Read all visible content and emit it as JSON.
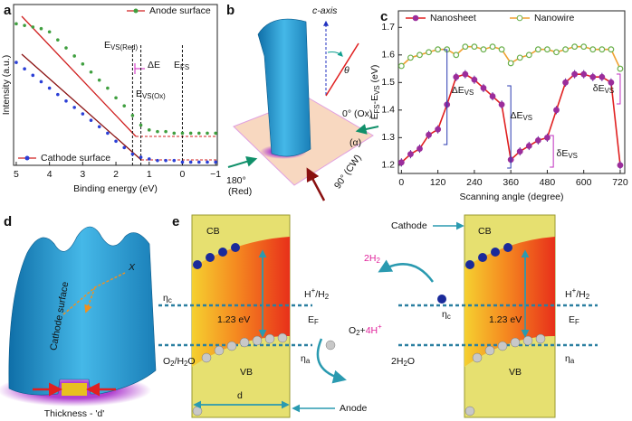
{
  "chart_data": [
    {
      "type": "scatter",
      "label": "a",
      "x_label": "Binding energy (eV)",
      "y_label": "Intensity (a.u.)",
      "xlim": [
        5.08,
        -1.05
      ],
      "ylim": [
        0,
        1
      ],
      "xticks": [
        5,
        4,
        3,
        2,
        1,
        0,
        {
          "value": -1,
          "label": "−1"
        }
      ],
      "x": [
        5,
        4.75,
        4.5,
        4.25,
        4,
        3.75,
        3.5,
        3.25,
        3,
        2.75,
        2.5,
        2.25,
        2,
        1.75,
        1.5,
        1.25,
        1,
        0.75,
        0.5,
        0.25,
        0,
        -0.25,
        -0.5,
        -0.75,
        -1
      ],
      "series": [
        {
          "name": "Anode surface",
          "color": "#3f9f3f",
          "legend": "upper right",
          "values": [
            0.88,
            0.87,
            0.86,
            0.85,
            0.83,
            0.78,
            0.73,
            0.68,
            0.63,
            0.58,
            0.53,
            0.48,
            0.42,
            0.37,
            0.31,
            0.25,
            0.22,
            0.21,
            0.21,
            0.2,
            0.2,
            0.2,
            0.2,
            0.2,
            0.2
          ]
        },
        {
          "name": "Cathode surface",
          "color": "#2b3fd6",
          "legend": "lower left",
          "values": [
            0.64,
            0.6,
            0.56,
            0.52,
            0.48,
            0.44,
            0.4,
            0.36,
            0.32,
            0.28,
            0.24,
            0.2,
            0.15,
            0.11,
            0.07,
            0.05,
            0.04,
            0.03,
            0.03,
            0.03,
            0.02,
            0.02,
            0.02,
            0.02,
            0.02
          ]
        }
      ],
      "vlines": [
        1.5,
        1.25,
        0
      ],
      "annotations": {
        "evs_red": {
          "parts": [
            {
              "text": "E"
            },
            {
              "sub": "VS(Red)"
            }
          ]
        },
        "delta_e": "ΔE",
        "evs_ox": {
          "parts": [
            {
              "text": "E"
            },
            {
              "sub": "VS(Ox)"
            }
          ]
        },
        "efs": {
          "parts": [
            {
              "text": "E"
            },
            {
              "sub": "FS"
            }
          ]
        }
      }
    },
    {
      "type": "line",
      "label": "c",
      "x_label": "Scanning angle (degree)",
      "y_label": {
        "parts": [
          {
            "text": "E"
          },
          {
            "sub": "FS"
          },
          {
            "text": "-E"
          },
          {
            "sub": "VS"
          },
          {
            "text": " (eV)"
          }
        ]
      },
      "xlim": [
        -10,
        735
      ],
      "ylim": [
        1.17,
        1.76
      ],
      "xticks": [
        0,
        120,
        240,
        360,
        480,
        600,
        720
      ],
      "yticks": [
        1.2,
        1.3,
        1.4,
        1.5,
        1.6,
        1.7
      ],
      "x": [
        0,
        30,
        60,
        90,
        120,
        150,
        180,
        210,
        240,
        270,
        300,
        330,
        360,
        390,
        420,
        450,
        480,
        510,
        540,
        570,
        600,
        630,
        660,
        690,
        720
      ],
      "series": [
        {
          "name": "Nanosheet",
          "color": "#e02020",
          "marker_color": "#9b2d9b",
          "values": [
            1.21,
            1.24,
            1.26,
            1.31,
            1.33,
            1.42,
            1.52,
            1.53,
            1.51,
            1.48,
            1.45,
            1.42,
            1.22,
            1.25,
            1.27,
            1.29,
            1.3,
            1.4,
            1.5,
            1.53,
            1.53,
            1.52,
            1.52,
            1.5,
            1.2
          ],
          "errors": [
            0.015,
            0.015,
            0.015,
            0.015,
            0.015,
            0.015,
            0.015,
            0.015,
            0.015,
            0.015,
            0.015,
            0.015,
            0.015,
            0.015,
            0.015,
            0.015,
            0.015,
            0.015,
            0.015,
            0.015,
            0.015,
            0.015,
            0.015,
            0.015,
            0.015
          ]
        },
        {
          "name": "Nanowire",
          "color": "#f0a030",
          "marker_color": "#6ab04c",
          "values": [
            1.56,
            1.59,
            1.6,
            1.61,
            1.62,
            1.62,
            1.6,
            1.63,
            1.63,
            1.62,
            1.63,
            1.62,
            1.57,
            1.59,
            1.6,
            1.62,
            1.62,
            1.61,
            1.62,
            1.63,
            1.63,
            1.62,
            1.62,
            1.62,
            1.55
          ]
        }
      ],
      "annotations": {
        "dEvs_left": {
          "parts": [
            {
              "text": "ΔE"
            },
            {
              "sub": "VS"
            }
          ]
        },
        "dEvs_right": {
          "parts": [
            {
              "text": "ΔE"
            },
            {
              "sub": "VS"
            }
          ]
        },
        "sEvs_low": {
          "parts": [
            {
              "text": "δE"
            },
            {
              "sub": "VS"
            }
          ]
        },
        "sEvs_high": {
          "parts": [
            {
              "text": "δE"
            },
            {
              "sub": "VS"
            }
          ]
        }
      }
    }
  ],
  "diagrams": {
    "b": {
      "label": "b",
      "c_axis": "c-axis",
      "theta": "θ",
      "ox": "0° (Ox)",
      "alpha": "(α)",
      "red_deg": "180°",
      "red": "(Red)",
      "cw": "90° (CW)"
    },
    "d": {
      "label": "d",
      "surface": "Cathode surface",
      "axis": "X",
      "thickness": "Thickness - 'd'"
    },
    "e": {
      "label": "e",
      "cb_left": "CB",
      "vb_left": "VB",
      "eta_c_left": {
        "parts": [
          {
            "text": "η"
          },
          {
            "sub": "c"
          }
        ]
      },
      "h2_left": {
        "parts": [
          {
            "text": "H"
          },
          {
            "sup": "+"
          },
          {
            "text": "/H"
          },
          {
            "sub": "2"
          }
        ]
      },
      "gap_left": "1.23 eV",
      "ef_left": {
        "parts": [
          {
            "text": "E"
          },
          {
            "sub": "F"
          }
        ]
      },
      "o2h2o": {
        "parts": [
          {
            "text": "O"
          },
          {
            "sub": "2"
          },
          {
            "text": "/H"
          },
          {
            "sub": "2"
          },
          {
            "text": "O"
          }
        ]
      },
      "eta_a_left": {
        "parts": [
          {
            "text": "η"
          },
          {
            "sub": "a"
          }
        ]
      },
      "d": "d",
      "anode": "Anode",
      "cathode": "Cathode",
      "h2_prod": {
        "parts": [
          {
            "text": "2H",
            "color": "#e0209a"
          },
          {
            "sub": "2",
            "color": "#e0209a"
          }
        ]
      },
      "o2": {
        "parts": [
          {
            "text": "O"
          },
          {
            "sub": "2"
          },
          {
            "text": "+"
          },
          {
            "text": "4H",
            "color": "#e0209a"
          },
          {
            "sup": "+",
            "color": "#e0209a"
          }
        ]
      },
      "h2o": {
        "parts": [
          {
            "text": "2H"
          },
          {
            "sub": "2"
          },
          {
            "text": "O"
          }
        ]
      },
      "cb_right": "CB",
      "vb_right": "VB",
      "eta_c_right": {
        "parts": [
          {
            "text": "η"
          },
          {
            "sub": "c"
          }
        ]
      },
      "h2_right": {
        "parts": [
          {
            "text": "H"
          },
          {
            "sup": "+"
          },
          {
            "text": "/H"
          },
          {
            "sub": "2"
          }
        ]
      },
      "gap_right": "1.23 eV",
      "ef_right": {
        "parts": [
          {
            "text": "E"
          },
          {
            "sub": "F"
          }
        ]
      },
      "eta_a_right": {
        "parts": [
          {
            "text": "η"
          },
          {
            "sub": "a"
          }
        ]
      }
    }
  }
}
